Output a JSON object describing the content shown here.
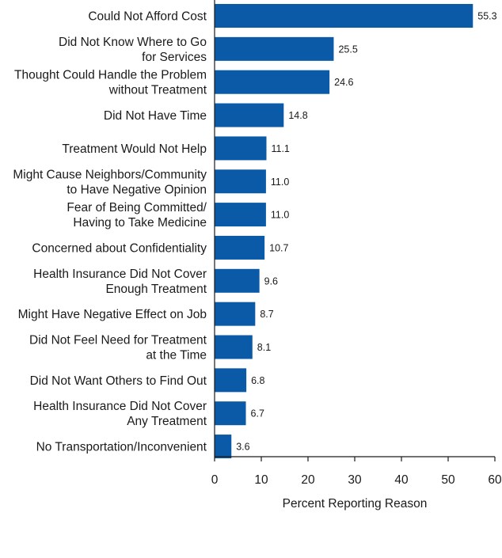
{
  "chart_data": {
    "type": "bar",
    "orientation": "horizontal",
    "categories": [
      [
        "Could Not Afford Cost"
      ],
      [
        "Did Not Know Where to Go",
        "for Services"
      ],
      [
        "Thought Could Handle the Problem",
        "without Treatment"
      ],
      [
        "Did Not Have Time"
      ],
      [
        "Treatment Would Not Help"
      ],
      [
        "Might Cause Neighbors/Community",
        "to Have Negative Opinion"
      ],
      [
        "Fear of Being Committed/",
        "Having to Take Medicine"
      ],
      [
        "Concerned about Confidentiality"
      ],
      [
        "Health Insurance Did Not Cover",
        "Enough Treatment"
      ],
      [
        "Might Have Negative Effect on Job"
      ],
      [
        "Did Not Feel Need for Treatment",
        "at the Time"
      ],
      [
        "Did Not Want Others to Find Out"
      ],
      [
        "Health Insurance Did Not Cover",
        "Any Treatment"
      ],
      [
        "No Transportation/Inconvenient"
      ]
    ],
    "values": [
      55.3,
      25.5,
      24.6,
      14.8,
      11.1,
      11.0,
      11.0,
      10.7,
      9.6,
      8.7,
      8.1,
      6.8,
      6.7,
      3.6
    ],
    "value_labels": [
      "55.3",
      "25.5",
      "24.6",
      "14.8",
      "11.1",
      "11.0",
      "11.0",
      "10.7",
      "9.6",
      "8.7",
      "8.1",
      "6.8",
      "6.7",
      "3.6"
    ],
    "xlabel": "Percent Reporting Reason",
    "xlim": [
      0,
      60
    ],
    "xticks": [
      "0",
      "10",
      "20",
      "30",
      "40",
      "50",
      "60"
    ],
    "grid": false,
    "bar_color": "#0b5aa8"
  }
}
